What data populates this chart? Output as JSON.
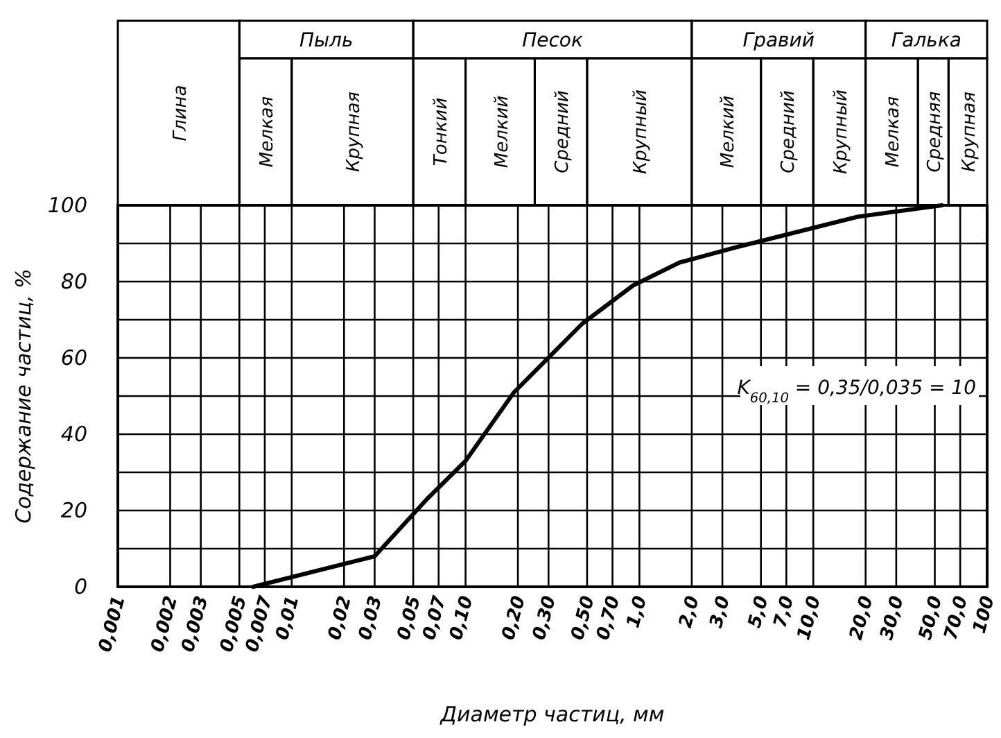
{
  "chart_data": {
    "type": "line",
    "xlabel": "Диаметр частиц, мм",
    "ylabel": "Содержание частиц, %",
    "log": "x",
    "grid": true,
    "line_style": "solid",
    "marker": "none",
    "x": [
      0.006,
      0.03,
      0.06,
      0.1,
      0.19,
      0.47,
      0.92,
      1.7,
      3.6,
      18,
      55
    ],
    "series": [
      {
        "color": "#000000",
        "values": [
          0,
          8,
          23,
          33,
          51,
          69,
          79,
          85,
          89,
          97,
          100
        ]
      }
    ],
    "xlim": [
      0.001,
      100
    ],
    "xticks": [
      {
        "value": 0.001,
        "label": "0,001"
      },
      {
        "value": 0.002,
        "label": "0,002"
      },
      {
        "value": 0.003,
        "label": "0,003"
      },
      {
        "value": 0.005,
        "label": "0,005"
      },
      {
        "value": 0.007,
        "label": "0,007"
      },
      {
        "value": 0.01,
        "label": "0,01"
      },
      {
        "value": 0.02,
        "label": "0,02"
      },
      {
        "value": 0.03,
        "label": "0,03"
      },
      {
        "value": 0.05,
        "label": "0,05"
      },
      {
        "value": 0.07,
        "label": "0,07"
      },
      {
        "value": 0.1,
        "label": "0,10"
      },
      {
        "value": 0.2,
        "label": "0,20"
      },
      {
        "value": 0.3,
        "label": "0,30"
      },
      {
        "value": 0.5,
        "label": "0,50"
      },
      {
        "value": 0.7,
        "label": "0,70"
      },
      {
        "value": 1,
        "label": "1,0"
      },
      {
        "value": 2,
        "label": "2,0"
      },
      {
        "value": 3,
        "label": "3,0"
      },
      {
        "value": 5,
        "label": "5,0"
      },
      {
        "value": 7,
        "label": "7,0"
      },
      {
        "value": 10,
        "label": "10,0"
      },
      {
        "value": 20,
        "label": "20,0"
      },
      {
        "value": 30,
        "label": "30,0"
      },
      {
        "value": 50,
        "label": "50,0"
      },
      {
        "value": 70,
        "label": "70,0"
      },
      {
        "value": 100,
        "label": "100"
      }
    ],
    "ylim": [
      0,
      100
    ],
    "yticks": [
      0,
      {
        "value": 10,
        "label": null
      },
      20,
      {
        "value": 30,
        "label": null
      },
      40,
      {
        "value": 50,
        "label": null
      },
      60,
      {
        "value": 70,
        "label": null
      },
      80,
      {
        "value": 90,
        "label": null
      },
      100
    ],
    "annotations": [
      "Глина",
      "Пыль",
      "Мелкая",
      "Крупная",
      "Песок",
      "Тонкий",
      "Мелкий",
      "Средний",
      "Крупный",
      "Гравий",
      "Мелкий",
      "Средний",
      "Крупный",
      "Галька",
      "Мелкая",
      "Средняя",
      "Крупная",
      "K$_{60,10}$ = 0,35/0,035 = 10"
    ]
  }
}
